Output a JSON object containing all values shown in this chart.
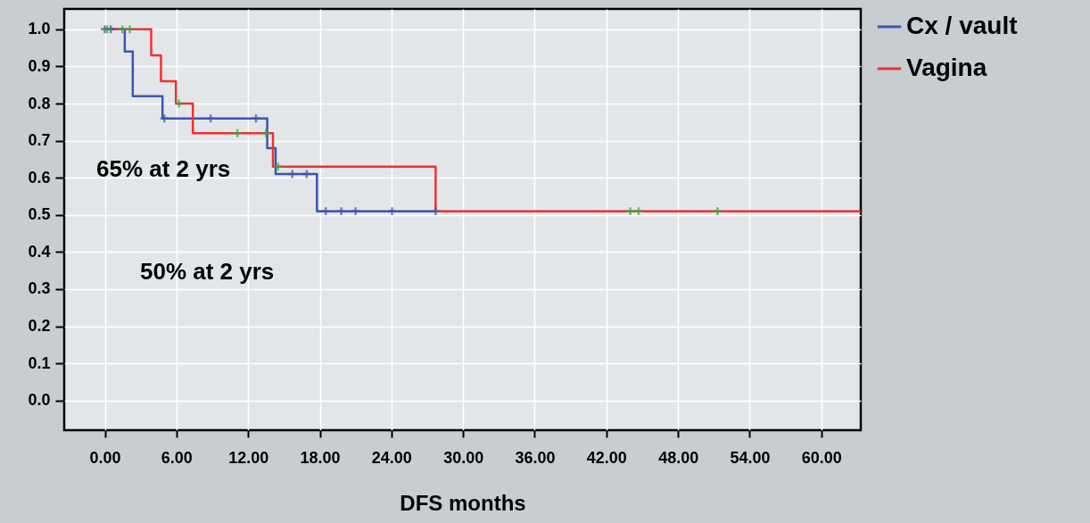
{
  "chart_data": {
    "type": "step",
    "xlabel": "DFS months",
    "annotations": [
      "65% at 2 yrs",
      "50% at 2 yrs"
    ],
    "xlim": [
      -3.4,
      63.3
    ],
    "ylim": [
      -0.08,
      1.055
    ],
    "xticks": [
      {
        "value": 0,
        "label": "0.00"
      },
      {
        "value": 6,
        "label": "6.00"
      },
      {
        "value": 12,
        "label": "12.00"
      },
      {
        "value": 18,
        "label": "18.00"
      },
      {
        "value": 24,
        "label": "24.00"
      },
      {
        "value": 30,
        "label": "30.00"
      },
      {
        "value": 36,
        "label": "36.00"
      },
      {
        "value": 42,
        "label": "42.00"
      },
      {
        "value": 48,
        "label": "48.00"
      },
      {
        "value": 54,
        "label": "54.00"
      },
      {
        "value": 60,
        "label": "60.00"
      }
    ],
    "yticks": [
      {
        "value": 0,
        "label": "0.0"
      },
      0.1,
      0.2,
      0.3,
      0.4,
      0.5,
      0.6,
      0.7,
      0.8,
      0.9,
      {
        "value": 1,
        "label": "1.0"
      }
    ],
    "grid": true,
    "legend": "top right",
    "line_style": "solid",
    "series": [
      {
        "name": "Cx / vault",
        "color": "#3b55b0",
        "x": [
          0,
          1.67,
          2.34,
          4.83,
          13.6,
          14.3,
          17.76,
          27.7
        ],
        "values": [
          1,
          0.94,
          0.82,
          0.76,
          0.68,
          0.61,
          0.51,
          0.51
        ]
      },
      {
        "name": "Vagina",
        "color": "#f03030",
        "x": [
          0,
          3.88,
          4.7,
          5.95,
          7.37,
          14.08,
          27.7,
          63.3
        ],
        "values": [
          1,
          0.93,
          0.86,
          0.8,
          0.72,
          0.63,
          0.51,
          0.51
        ]
      },
      {
        "type": "scatter",
        "marker": "cross",
        "color": "#3b55b0",
        "x": [
          0,
          0.5,
          4.98,
          8.86,
          12.66,
          15.7,
          16.9,
          18.5,
          19.8,
          21.0,
          24.05,
          27.7
        ],
        "values": [
          1,
          1,
          0.76,
          0.76,
          0.76,
          0.61,
          0.61,
          0.51,
          0.51,
          0.51,
          0.51,
          0.51
        ]
      },
      {
        "type": "scatter",
        "marker": "cross",
        "color": "#33aa44",
        "x": [
          0.2,
          1.47,
          2.09,
          6.2,
          11.1,
          13.5,
          14.5,
          44.0,
          44.7,
          51.3
        ],
        "values": [
          1,
          1,
          1,
          0.8,
          0.72,
          0.72,
          0.63,
          0.51,
          0.51,
          0.51
        ]
      }
    ]
  }
}
